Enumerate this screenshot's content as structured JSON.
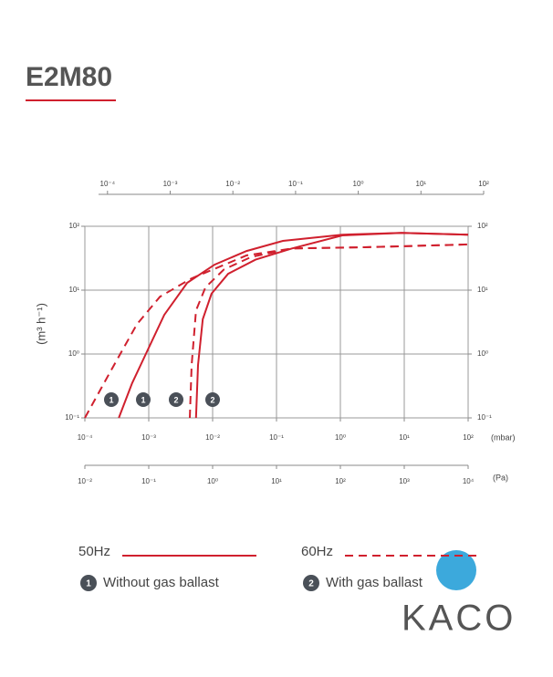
{
  "title": "E2M80",
  "watermark": "KACO",
  "chart_data": {
    "type": "line",
    "log_x": true,
    "log_y": true,
    "grid": true,
    "ylabel": "(m³ h⁻¹)",
    "xlabel": "(mbar)",
    "x3label": "(Pa)",
    "xlim": [
      0.0001,
      100
    ],
    "xticks": [
      {
        "value": 0.0001,
        "label": "10⁻⁴"
      },
      {
        "value": 0.001,
        "label": "10⁻³"
      },
      {
        "value": 0.01,
        "label": "10⁻²"
      },
      {
        "value": 0.1,
        "label": "10⁻¹"
      },
      {
        "value": 1,
        "label": "10⁰"
      },
      {
        "value": 10,
        "label": "10¹"
      },
      {
        "value": 100,
        "label": "10²"
      }
    ],
    "x2lim": [
      7.2e-05,
      100
    ],
    "x2ticks": [
      {
        "value": 0.0001,
        "label": "10⁻⁴"
      },
      {
        "value": 0.001,
        "label": "10⁻³"
      },
      {
        "value": 0.01,
        "label": "10⁻²"
      },
      {
        "value": 0.1,
        "label": "10⁻¹"
      },
      {
        "value": 1,
        "label": "10⁰"
      },
      {
        "value": 10,
        "label": "10¹"
      },
      {
        "value": 100,
        "label": "10²"
      }
    ],
    "x3lim": [
      0.01,
      10000
    ],
    "x3ticks": [
      {
        "value": 0.01,
        "label": "10⁻²"
      },
      {
        "value": 0.1,
        "label": "10⁻¹"
      },
      {
        "value": 1,
        "label": "10⁰"
      },
      {
        "value": 10,
        "label": "10¹"
      },
      {
        "value": 100,
        "label": "10²"
      },
      {
        "value": 1000,
        "label": "10³"
      },
      {
        "value": 10000,
        "label": "10⁴"
      }
    ],
    "ylim": [
      0.1,
      100
    ],
    "yticks": [
      {
        "value": 0.1,
        "label": "10⁻¹"
      },
      {
        "value": 1,
        "label": "10⁰"
      },
      {
        "value": 10,
        "label": "10¹"
      },
      {
        "value": 100,
        "label": "10²"
      }
    ],
    "y2lim": [
      0.1,
      100
    ],
    "y2ticks": [
      {
        "value": 0.1,
        "label": "10⁻¹"
      },
      {
        "value": 1,
        "label": "10⁰"
      },
      {
        "value": 10,
        "label": "10¹"
      },
      {
        "value": 100,
        "label": "10²"
      }
    ],
    "series": [
      {
        "color": "#d0202e",
        "dashed": false,
        "marker": "1",
        "x": [
          0.00034,
          0.00055,
          0.0009,
          0.00175,
          0.004,
          0.0107,
          0.034,
          0.126,
          1.07,
          9.1,
          100
        ],
        "values": [
          0.1,
          0.35,
          1,
          4.1,
          13,
          25,
          41,
          59,
          74,
          79,
          74
        ]
      },
      {
        "color": "#d0202e",
        "dashed": true,
        "marker": "1",
        "x": [
          0.0001,
          0.00024,
          0.00065,
          0.0015,
          0.0047,
          0.0125,
          0.034,
          0.175,
          2.4,
          100
        ],
        "values": [
          0.1,
          0.49,
          2.9,
          7.9,
          15.3,
          23,
          35,
          45,
          47,
          52
        ]
      },
      {
        "color": "#d0202e",
        "dashed": false,
        "marker": "2",
        "x": [
          0.0055,
          0.0059,
          0.007,
          0.0096,
          0.0175,
          0.047,
          0.175,
          1.07,
          9.1,
          100
        ],
        "values": [
          0.1,
          0.67,
          3.5,
          8.8,
          18,
          30,
          45,
          72,
          79,
          74
        ]
      },
      {
        "color": "#d0202e",
        "dashed": true,
        "marker": "2",
        "x": [
          0.0044,
          0.0047,
          0.0055,
          0.0077,
          0.015,
          0.04,
          0.175,
          2.4,
          100
        ],
        "values": [
          0.1,
          0.67,
          4.8,
          11,
          21,
          33,
          45,
          47,
          52
        ]
      }
    ],
    "legend": {
      "frequencies": [
        {
          "label": "50Hz",
          "dashed": false
        },
        {
          "label": "60Hz",
          "dashed": true
        }
      ],
      "ballast": [
        {
          "marker": "1",
          "label": "Without gas ballast"
        },
        {
          "marker": "2",
          "label": "With gas ballast"
        }
      ]
    }
  }
}
